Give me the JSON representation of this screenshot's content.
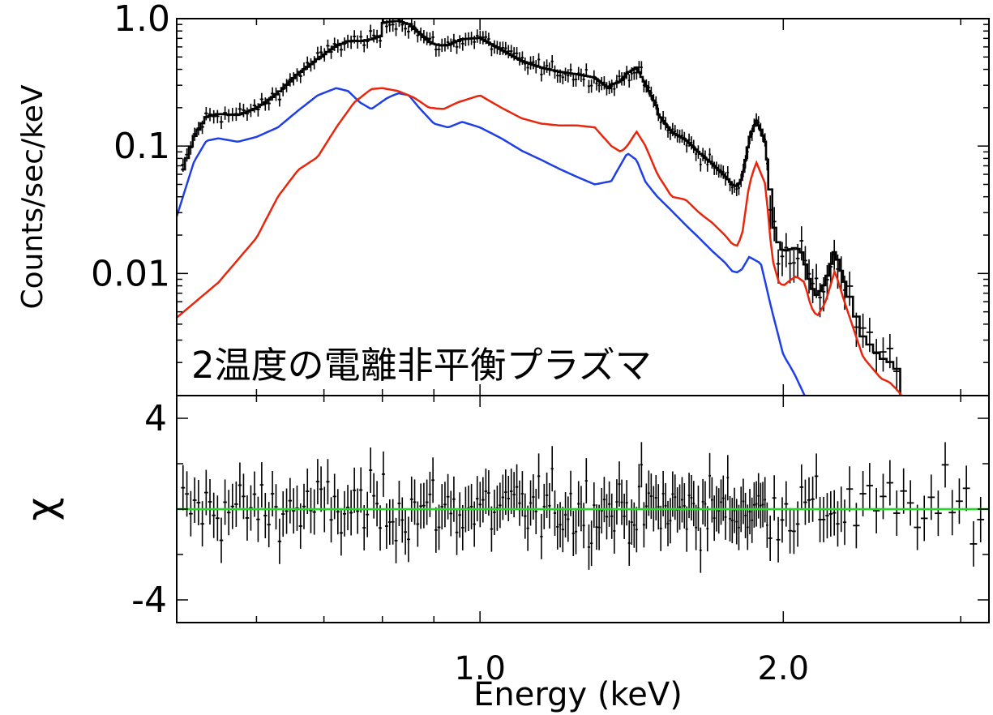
{
  "chart_data": [
    {
      "panel": "spectrum",
      "type": "line",
      "ylabel": "Counts/sec/keV",
      "yscale": "log",
      "ylim": [
        0.0011,
        1.0
      ],
      "xlim": [
        0.5,
        3.2
      ],
      "xscale": "log",
      "yticks": [
        {
          "value": 1.0,
          "label": "1.0"
        },
        {
          "value": 0.1,
          "label": "0.1"
        },
        {
          "value": 0.01,
          "label": "0.01"
        }
      ],
      "annotation": {
        "text": "2温度の電離非平衡プラズマ",
        "color": "#1f3fe6"
      },
      "series": [
        {
          "color": "#1f3fe6",
          "x": [
            0.5,
            0.52,
            0.535,
            0.55,
            0.575,
            0.6,
            0.63,
            0.66,
            0.69,
            0.72,
            0.74,
            0.76,
            0.78,
            0.81,
            0.83,
            0.85,
            0.87,
            0.9,
            0.93,
            0.96,
            1.0,
            1.05,
            1.1,
            1.15,
            1.2,
            1.25,
            1.3,
            1.35,
            1.38,
            1.4,
            1.43,
            1.46,
            1.5,
            1.55,
            1.6,
            1.65,
            1.7,
            1.75,
            1.78,
            1.8,
            1.82,
            1.85,
            1.9,
            1.95,
            2.0,
            2.05,
            2.1
          ],
          "y": [
            0.028,
            0.075,
            0.11,
            0.115,
            0.108,
            0.118,
            0.14,
            0.19,
            0.25,
            0.285,
            0.27,
            0.22,
            0.195,
            0.24,
            0.26,
            0.25,
            0.2,
            0.15,
            0.14,
            0.155,
            0.14,
            0.115,
            0.092,
            0.078,
            0.066,
            0.057,
            0.05,
            0.053,
            0.072,
            0.088,
            0.078,
            0.052,
            0.04,
            0.031,
            0.024,
            0.019,
            0.015,
            0.0122,
            0.0104,
            0.0102,
            0.0108,
            0.0135,
            0.012,
            0.005,
            0.0023,
            0.00165,
            0.0011
          ]
        },
        {
          "color": "#e8260c",
          "x": [
            0.5,
            0.55,
            0.6,
            0.63,
            0.66,
            0.69,
            0.72,
            0.75,
            0.78,
            0.8,
            0.83,
            0.86,
            0.89,
            0.92,
            0.95,
            1.0,
            1.05,
            1.1,
            1.15,
            1.2,
            1.25,
            1.3,
            1.35,
            1.38,
            1.4,
            1.43,
            1.46,
            1.5,
            1.55,
            1.6,
            1.65,
            1.7,
            1.75,
            1.78,
            1.8,
            1.82,
            1.85,
            1.88,
            1.92,
            1.95,
            1.98,
            2.0,
            2.03,
            2.06,
            2.1,
            2.13,
            2.16,
            2.2,
            2.25,
            2.3,
            2.4,
            2.5,
            2.55,
            2.6,
            2.62
          ],
          "y": [
            0.0045,
            0.0085,
            0.019,
            0.04,
            0.065,
            0.082,
            0.14,
            0.22,
            0.28,
            0.285,
            0.27,
            0.24,
            0.2,
            0.195,
            0.22,
            0.25,
            0.2,
            0.165,
            0.15,
            0.145,
            0.145,
            0.14,
            0.1,
            0.09,
            0.1,
            0.13,
            0.1,
            0.06,
            0.04,
            0.038,
            0.03,
            0.025,
            0.02,
            0.017,
            0.0165,
            0.02,
            0.05,
            0.075,
            0.05,
            0.013,
            0.0085,
            0.008,
            0.0088,
            0.0095,
            0.0085,
            0.0055,
            0.0046,
            0.0058,
            0.0105,
            0.006,
            0.0022,
            0.0015,
            0.0014,
            0.0012,
            0.0011
          ]
        }
      ]
    },
    {
      "panel": "residuals",
      "type": "scatter",
      "xlabel": "Energy (keV)",
      "ylabel": "χ",
      "ylim": [
        -5.0,
        5.0
      ],
      "xlim": [
        0.5,
        3.2
      ],
      "xscale": "log",
      "yticks": [
        {
          "value": 4,
          "label": "4"
        },
        {
          "value": -4,
          "label": "-4"
        }
      ],
      "xticks": [
        {
          "value": 1.0,
          "label": "1.0"
        },
        {
          "value": 2.0,
          "label": "2.0"
        }
      ],
      "zero_line_color": "#22dd22"
    }
  ]
}
